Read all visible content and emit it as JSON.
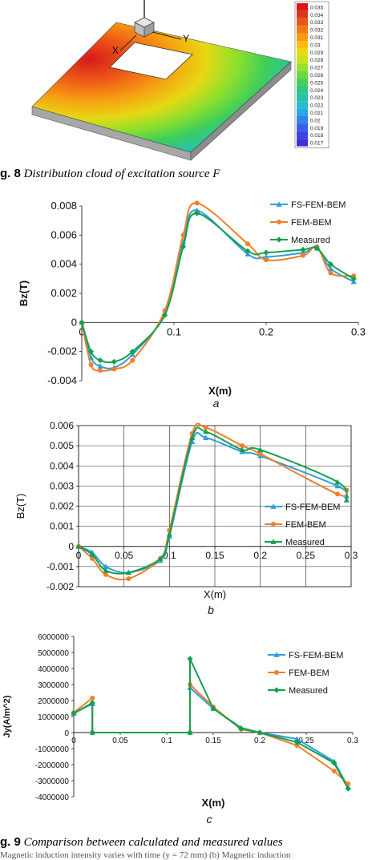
{
  "fig8": {
    "axis_x": "X",
    "axis_y": "Y",
    "colorbar_levels": [
      "0.035",
      "0.034",
      "0.033",
      "0.032",
      "0.031",
      "0.03",
      "0.029",
      "0.028",
      "0.027",
      "0.026",
      "0.025",
      "0.024",
      "0.023",
      "0.022",
      "0.021",
      "0.02",
      "0.019",
      "0.018",
      "0.017"
    ],
    "colorbar_colors": [
      "#d7191c",
      "#e0341a",
      "#ea5518",
      "#f27815",
      "#f79b12",
      "#f9bd10",
      "#ecd811",
      "#c5e21a",
      "#97e12a",
      "#6cd93f",
      "#45d057",
      "#2fc781",
      "#27c3a7",
      "#26bfcd",
      "#2ca6e6",
      "#3182eb",
      "#3760ea",
      "#3c43e6",
      "#3f31d8"
    ],
    "caption_label": "g. 8",
    "caption_text": "Distribution cloud of excitation source F"
  },
  "chart_data": [
    {
      "type": "line",
      "panel_label": "a",
      "xlabel": "X(m)",
      "ylabel": "Bz(T)",
      "xlim": [
        0,
        0.3
      ],
      "ylim": [
        -0.004,
        0.008
      ],
      "x_ticks": [
        "0",
        "0.1",
        "0.2",
        "0.3"
      ],
      "y_ticks": [
        "0.008",
        "0.006",
        "0.004",
        "0.002",
        "0",
        "-0.002",
        "-0.004"
      ],
      "grid": false,
      "legend_position": "top-right",
      "series": [
        {
          "name": "FS-FEM-BEM",
          "marker": "triangle",
          "color": "#2e9fd9",
          "x": [
            0,
            0.01,
            0.02,
            0.035,
            0.055,
            0.09,
            0.11,
            0.125,
            0.18,
            0.2,
            0.24,
            0.255,
            0.27,
            0.295
          ],
          "y": [
            0,
            -0.0024,
            -0.003,
            -0.0031,
            -0.0022,
            0.0006,
            0.0055,
            0.0077,
            0.0047,
            0.0045,
            0.0048,
            0.0051,
            0.0037,
            0.0028
          ]
        },
        {
          "name": "FEM-BEM",
          "marker": "circle",
          "color": "#f07f2c",
          "x": [
            0,
            0.01,
            0.02,
            0.035,
            0.055,
            0.09,
            0.11,
            0.125,
            0.18,
            0.2,
            0.24,
            0.255,
            0.27,
            0.295
          ],
          "y": [
            0,
            -0.0029,
            -0.0033,
            -0.0032,
            -0.0026,
            0.0008,
            0.006,
            0.0082,
            0.0054,
            0.0043,
            0.0046,
            0.0052,
            0.0034,
            0.0032
          ]
        },
        {
          "name": "Measured",
          "marker": "diamond",
          "color": "#13a04e",
          "x": [
            0,
            0.01,
            0.02,
            0.035,
            0.055,
            0.09,
            0.11,
            0.125,
            0.18,
            0.2,
            0.24,
            0.255,
            0.27,
            0.295
          ],
          "y": [
            0,
            -0.002,
            -0.0026,
            -0.0027,
            -0.002,
            0.0005,
            0.0052,
            0.0075,
            0.0049,
            0.0048,
            0.005,
            0.0051,
            0.004,
            0.003
          ]
        }
      ]
    },
    {
      "type": "line",
      "panel_label": "b",
      "xlabel": "X(m)",
      "ylabel": "Bz(T)",
      "xlim": [
        0,
        0.3
      ],
      "ylim": [
        -0.002,
        0.006
      ],
      "x_ticks": [
        "0",
        "0.05",
        "0.1",
        "0.15",
        "0.2",
        "0.25",
        "0.3"
      ],
      "y_ticks": [
        "0.006",
        "0.005",
        "0.004",
        "0.003",
        "0.002",
        "0.001",
        "0",
        "-0.001",
        "-0.002"
      ],
      "grid": true,
      "legend_position": "bottom-right",
      "series": [
        {
          "name": "FS-FEM-BEM",
          "marker": "triangle",
          "color": "#2e9fd9",
          "x": [
            0,
            0.015,
            0.03,
            0.055,
            0.09,
            0.1,
            0.125,
            0.14,
            0.18,
            0.2,
            0.285,
            0.295
          ],
          "y": [
            0,
            -0.0003,
            -0.001,
            -0.0013,
            -0.0007,
            0.0005,
            0.0052,
            0.0054,
            0.0047,
            0.0045,
            0.003,
            0.0025
          ]
        },
        {
          "name": "FEM-BEM",
          "marker": "circle",
          "color": "#f07f2c",
          "x": [
            0,
            0.015,
            0.03,
            0.055,
            0.09,
            0.1,
            0.125,
            0.14,
            0.18,
            0.2,
            0.285,
            0.295
          ],
          "y": [
            0,
            -0.0006,
            -0.0014,
            -0.0016,
            -0.0006,
            0.0008,
            0.0056,
            0.0059,
            0.005,
            0.0046,
            0.0026,
            0.0028
          ]
        },
        {
          "name": "Measured",
          "marker": "triangle",
          "color": "#13a04e",
          "x": [
            0,
            0.015,
            0.03,
            0.055,
            0.09,
            0.1,
            0.125,
            0.14,
            0.18,
            0.2,
            0.285,
            0.295
          ],
          "y": [
            0,
            -0.0004,
            -0.0012,
            -0.0013,
            -0.0006,
            0.0006,
            0.0054,
            0.0057,
            0.0048,
            0.0048,
            0.0032,
            0.0023
          ]
        }
      ]
    },
    {
      "type": "line",
      "panel_label": "c",
      "xlabel": "X(m)",
      "ylabel": "Jy(A/m^2)",
      "xlim": [
        0,
        0.3
      ],
      "ylim": [
        -4000000,
        6000000
      ],
      "x_ticks": [
        "0",
        "0.05",
        "0.1",
        "0.15",
        "0.2",
        "0.25",
        "0.3"
      ],
      "y_ticks": [
        "6000000",
        "5000000",
        "4000000",
        "3000000",
        "2000000",
        "1000000",
        "0",
        "-1000000",
        "-2000000",
        "-3000000",
        "-4000000"
      ],
      "grid": false,
      "legend_position": "top-right",
      "series": [
        {
          "name": "FS-FEM-BEM",
          "marker": "triangle",
          "color": "#2e9fd9",
          "x": [
            0,
            0.02,
            0.02,
            0.125,
            0.125,
            0.15,
            0.18,
            0.2,
            0.24,
            0.28,
            0.295
          ],
          "y": [
            1200000,
            1800000,
            0,
            0,
            2800000,
            1500000,
            300000,
            0,
            -400000,
            -1800000,
            -3400000
          ]
        },
        {
          "name": "FEM-BEM",
          "marker": "circle",
          "color": "#f07f2c",
          "x": [
            0,
            0.02,
            0.02,
            0.125,
            0.125,
            0.15,
            0.18,
            0.2,
            0.24,
            0.28,
            0.295
          ],
          "y": [
            1250000,
            2150000,
            0,
            0,
            3000000,
            1600000,
            200000,
            0,
            -800000,
            -2400000,
            -3200000
          ]
        },
        {
          "name": "Measured",
          "marker": "diamond",
          "color": "#13a04e",
          "x": [
            0,
            0.02,
            0.02,
            0.125,
            0.125,
            0.15,
            0.18,
            0.2,
            0.24,
            0.28,
            0.295
          ],
          "y": [
            1200000,
            1850000,
            0,
            0,
            4600000,
            1500000,
            250000,
            0,
            -600000,
            -1900000,
            -3500000
          ]
        }
      ]
    }
  ],
  "fig9": {
    "caption_label": "g. 9",
    "caption_text": "Comparison between calculated and measured values",
    "footnote": "Magnetic induction intensity varies with time (y = 72 mm) (b) Magnetic induction"
  }
}
